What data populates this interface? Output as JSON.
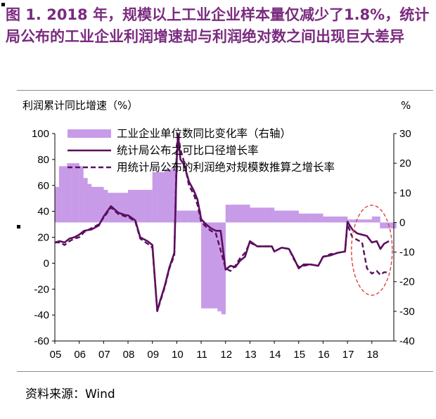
{
  "figure": {
    "title": "图 1. 2018 年，规模以上工业企业样本量仅减少了1.8%，统计局公布的工业企业利润增速却与利润绝对数之间出现巨大差异",
    "source": "资料来源：Wind"
  },
  "chart_data": {
    "type": "line",
    "left_axis_label": "利润累计同比增速（%）",
    "right_axis_label": "%",
    "x_ticks": [
      "05",
      "06",
      "07",
      "08",
      "09",
      "10",
      "11",
      "12",
      "13",
      "14",
      "15",
      "16",
      "17",
      "18"
    ],
    "x_range": [
      2005.0,
      2018.9
    ],
    "y_left": {
      "range": [
        -60,
        100
      ],
      "ticks": [
        100,
        80,
        60,
        40,
        20,
        0,
        -20,
        -40,
        -60
      ]
    },
    "y_right": {
      "range": [
        -40,
        30
      ],
      "ticks": [
        30,
        20,
        10,
        0,
        -10,
        -20,
        -30,
        -40
      ]
    },
    "grid": false,
    "legend_position": "top-center",
    "colors": {
      "bar": "#c89be8",
      "line": "#5b0f5f",
      "dashed": "#5b0f5f",
      "highlight": "#e04040"
    },
    "highlight": {
      "shape": "dashed-ellipse",
      "x_center": 2018.0,
      "y_left_center": 10
    },
    "series": [
      {
        "name": "工业企业单位数同比变化率（右轴）",
        "axis": "right",
        "style": "bar",
        "points": [
          [
            2005.0,
            12
          ],
          [
            2005.17,
            19
          ],
          [
            2005.33,
            19
          ],
          [
            2005.5,
            20
          ],
          [
            2005.67,
            20
          ],
          [
            2005.83,
            20
          ],
          [
            2006.0,
            19
          ],
          [
            2006.17,
            15
          ],
          [
            2006.33,
            13
          ],
          [
            2006.5,
            12
          ],
          [
            2006.67,
            12
          ],
          [
            2006.83,
            12
          ],
          [
            2007.0,
            11
          ],
          [
            2007.17,
            10
          ],
          [
            2007.33,
            10
          ],
          [
            2007.5,
            10
          ],
          [
            2007.67,
            10
          ],
          [
            2007.83,
            10
          ],
          [
            2008.0,
            11
          ],
          [
            2008.17,
            11
          ],
          [
            2008.33,
            11
          ],
          [
            2008.5,
            11
          ],
          [
            2008.67,
            11
          ],
          [
            2008.83,
            11
          ],
          [
            2009.0,
            17
          ],
          [
            2009.17,
            17
          ],
          [
            2009.33,
            17
          ],
          [
            2009.5,
            18
          ],
          [
            2009.67,
            18
          ],
          [
            2009.83,
            18
          ],
          [
            2010.0,
            4
          ],
          [
            2010.17,
            4
          ],
          [
            2010.33,
            4
          ],
          [
            2010.5,
            4
          ],
          [
            2010.67,
            4
          ],
          [
            2010.83,
            4
          ],
          [
            2011.0,
            -29
          ],
          [
            2011.17,
            -29
          ],
          [
            2011.33,
            -29
          ],
          [
            2011.5,
            -29
          ],
          [
            2011.67,
            -30
          ],
          [
            2011.83,
            -31
          ],
          [
            2012.0,
            6
          ],
          [
            2012.17,
            6
          ],
          [
            2012.33,
            6
          ],
          [
            2012.5,
            6
          ],
          [
            2012.67,
            6
          ],
          [
            2012.83,
            6
          ],
          [
            2013.0,
            5
          ],
          [
            2013.17,
            5
          ],
          [
            2013.33,
            5
          ],
          [
            2013.5,
            5
          ],
          [
            2013.67,
            5
          ],
          [
            2013.83,
            5
          ],
          [
            2014.0,
            4
          ],
          [
            2014.17,
            4
          ],
          [
            2014.33,
            4
          ],
          [
            2014.5,
            4
          ],
          [
            2014.67,
            4
          ],
          [
            2014.83,
            4
          ],
          [
            2015.0,
            3
          ],
          [
            2015.17,
            3
          ],
          [
            2015.33,
            3
          ],
          [
            2015.5,
            3
          ],
          [
            2015.67,
            3
          ],
          [
            2015.83,
            3
          ],
          [
            2016.0,
            2
          ],
          [
            2016.17,
            2
          ],
          [
            2016.33,
            2
          ],
          [
            2016.5,
            2
          ],
          [
            2016.67,
            2
          ],
          [
            2016.83,
            2
          ],
          [
            2017.0,
            1
          ],
          [
            2017.17,
            1
          ],
          [
            2017.33,
            1
          ],
          [
            2017.5,
            1
          ],
          [
            2017.67,
            1
          ],
          [
            2017.83,
            1
          ],
          [
            2018.0,
            2
          ],
          [
            2018.17,
            2
          ],
          [
            2018.33,
            -2
          ],
          [
            2018.5,
            -2
          ],
          [
            2018.67,
            -2
          ],
          [
            2018.83,
            -2
          ]
        ]
      },
      {
        "name": "统计局公布之可比口径增长率",
        "axis": "left",
        "style": "solid",
        "points": [
          [
            2005.0,
            16
          ],
          [
            2005.2,
            17
          ],
          [
            2005.4,
            16
          ],
          [
            2005.6,
            19
          ],
          [
            2005.8,
            20
          ],
          [
            2006.0,
            22
          ],
          [
            2006.2,
            25
          ],
          [
            2006.5,
            26
          ],
          [
            2006.8,
            29
          ],
          [
            2007.0,
            36
          ],
          [
            2007.3,
            44
          ],
          [
            2007.6,
            39
          ],
          [
            2007.9,
            37
          ],
          [
            2008.0,
            37
          ],
          [
            2008.3,
            33
          ],
          [
            2008.5,
            20
          ],
          [
            2008.8,
            17
          ],
          [
            2009.0,
            14
          ],
          [
            2009.2,
            -37
          ],
          [
            2009.3,
            -30
          ],
          [
            2009.5,
            -18
          ],
          [
            2009.7,
            -3
          ],
          [
            2009.9,
            8
          ],
          [
            2010.0,
            80
          ],
          [
            2010.05,
            100
          ],
          [
            2010.15,
            80
          ],
          [
            2010.3,
            76
          ],
          [
            2010.5,
            63
          ],
          [
            2010.7,
            56
          ],
          [
            2010.85,
            49
          ],
          [
            2011.0,
            34
          ],
          [
            2011.2,
            30
          ],
          [
            2011.4,
            27
          ],
          [
            2011.6,
            25
          ],
          [
            2011.8,
            25
          ],
          [
            2012.0,
            -5
          ],
          [
            2012.2,
            -2
          ],
          [
            2012.4,
            -3
          ],
          [
            2012.6,
            2
          ],
          [
            2012.8,
            5
          ],
          [
            2013.0,
            17
          ],
          [
            2013.3,
            13
          ],
          [
            2013.6,
            13
          ],
          [
            2013.9,
            13
          ],
          [
            2014.0,
            9
          ],
          [
            2014.3,
            12
          ],
          [
            2014.6,
            11
          ],
          [
            2014.8,
            4
          ],
          [
            2015.0,
            -4
          ],
          [
            2015.2,
            -1
          ],
          [
            2015.5,
            -1
          ],
          [
            2015.8,
            -2
          ],
          [
            2016.0,
            5
          ],
          [
            2016.3,
            6
          ],
          [
            2016.6,
            8
          ],
          [
            2016.9,
            9
          ],
          [
            2017.0,
            32
          ],
          [
            2017.2,
            26
          ],
          [
            2017.4,
            23
          ],
          [
            2017.6,
            22
          ],
          [
            2017.8,
            21
          ],
          [
            2018.0,
            16
          ],
          [
            2018.2,
            17
          ],
          [
            2018.35,
            11
          ],
          [
            2018.5,
            15
          ],
          [
            2018.7,
            17
          ]
        ]
      },
      {
        "name": "用统计局公布的利润绝对规模数推算之增长率",
        "axis": "left",
        "style": "dashed",
        "points": [
          [
            2005.0,
            16
          ],
          [
            2005.2,
            16
          ],
          [
            2005.4,
            14
          ],
          [
            2005.6,
            17
          ],
          [
            2005.8,
            19
          ],
          [
            2006.0,
            20
          ],
          [
            2006.2,
            24
          ],
          [
            2006.5,
            27
          ],
          [
            2006.8,
            30
          ],
          [
            2007.0,
            35
          ],
          [
            2007.3,
            43
          ],
          [
            2007.6,
            38
          ],
          [
            2007.9,
            36
          ],
          [
            2008.0,
            36
          ],
          [
            2008.3,
            32
          ],
          [
            2008.5,
            19
          ],
          [
            2008.8,
            15
          ],
          [
            2009.0,
            12
          ],
          [
            2009.2,
            -37
          ],
          [
            2009.3,
            -31
          ],
          [
            2009.5,
            -19
          ],
          [
            2009.7,
            -4
          ],
          [
            2009.9,
            6
          ],
          [
            2010.0,
            90
          ],
          [
            2010.05,
            100
          ],
          [
            2010.15,
            88
          ],
          [
            2010.3,
            78
          ],
          [
            2010.5,
            60
          ],
          [
            2010.7,
            53
          ],
          [
            2010.85,
            45
          ],
          [
            2011.0,
            32
          ],
          [
            2011.2,
            28
          ],
          [
            2011.4,
            25
          ],
          [
            2011.6,
            23
          ],
          [
            2011.8,
            10
          ],
          [
            2012.0,
            -4
          ],
          [
            2012.2,
            -6
          ],
          [
            2012.4,
            -2
          ],
          [
            2012.6,
            4
          ],
          [
            2012.8,
            8
          ],
          [
            2013.0,
            16
          ],
          [
            2013.3,
            13
          ],
          [
            2013.6,
            13
          ],
          [
            2013.9,
            13
          ],
          [
            2014.0,
            9
          ],
          [
            2014.3,
            12
          ],
          [
            2014.6,
            11
          ],
          [
            2014.8,
            3
          ],
          [
            2015.0,
            -3
          ],
          [
            2015.2,
            -2
          ],
          [
            2015.5,
            -1
          ],
          [
            2015.8,
            -2
          ],
          [
            2016.0,
            5
          ],
          [
            2016.3,
            7
          ],
          [
            2016.6,
            8
          ],
          [
            2016.9,
            9
          ],
          [
            2017.0,
            30
          ],
          [
            2017.2,
            20
          ],
          [
            2017.4,
            18
          ],
          [
            2017.6,
            16
          ],
          [
            2017.8,
            -4
          ],
          [
            2018.0,
            -8
          ],
          [
            2018.2,
            -6
          ],
          [
            2018.35,
            -9
          ],
          [
            2018.5,
            -7
          ],
          [
            2018.7,
            -7
          ]
        ]
      }
    ]
  }
}
